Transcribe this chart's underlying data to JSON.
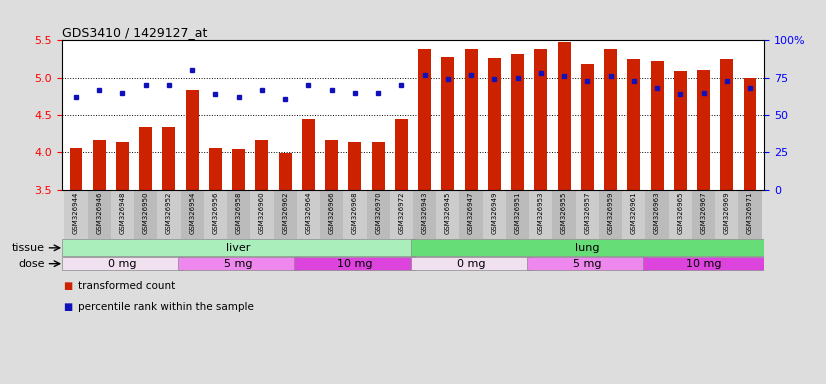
{
  "title": "GDS3410 / 1429127_at",
  "samples": [
    "GSM326944",
    "GSM326946",
    "GSM326948",
    "GSM326950",
    "GSM326952",
    "GSM326954",
    "GSM326956",
    "GSM326958",
    "GSM326960",
    "GSM326962",
    "GSM326964",
    "GSM326966",
    "GSM326968",
    "GSM326970",
    "GSM326972",
    "GSM326943",
    "GSM326945",
    "GSM326947",
    "GSM326949",
    "GSM326951",
    "GSM326953",
    "GSM326955",
    "GSM326957",
    "GSM326959",
    "GSM326961",
    "GSM326963",
    "GSM326965",
    "GSM326967",
    "GSM326969",
    "GSM326971"
  ],
  "transformed_count": [
    4.06,
    4.17,
    4.14,
    4.34,
    4.34,
    4.84,
    4.06,
    4.05,
    4.16,
    3.99,
    4.45,
    4.17,
    4.14,
    4.14,
    4.45,
    5.38,
    5.28,
    5.38,
    5.27,
    5.32,
    5.38,
    5.48,
    5.18,
    5.38,
    5.25,
    5.22,
    5.09,
    5.1,
    5.25,
    5.0
  ],
  "percentile_rank": [
    62,
    67,
    65,
    70,
    70,
    80,
    64,
    62,
    67,
    61,
    70,
    67,
    65,
    65,
    70,
    77,
    74,
    77,
    74,
    75,
    78,
    76,
    73,
    76,
    73,
    68,
    64,
    65,
    73,
    68
  ],
  "ylim_left": [
    3.5,
    5.5
  ],
  "ylim_right": [
    0,
    100
  ],
  "yticks_left": [
    3.5,
    4.0,
    4.5,
    5.0,
    5.5
  ],
  "yticks_right": [
    0,
    25,
    50,
    75,
    100
  ],
  "bar_color": "#CC2200",
  "dot_color": "#1111BB",
  "tissue_groups": [
    {
      "label": "liver",
      "start": 0,
      "end": 15,
      "color": "#AAEEBB"
    },
    {
      "label": "lung",
      "start": 15,
      "end": 30,
      "color": "#66DD77"
    }
  ],
  "dose_groups": [
    {
      "label": "0 mg",
      "start": 0,
      "end": 5,
      "color": "#F0E0F0"
    },
    {
      "label": "5 mg",
      "start": 5,
      "end": 10,
      "color": "#EE88EE"
    },
    {
      "label": "10 mg",
      "start": 10,
      "end": 15,
      "color": "#DD44DD"
    },
    {
      "label": "0 mg",
      "start": 15,
      "end": 20,
      "color": "#F0E0F0"
    },
    {
      "label": "5 mg",
      "start": 20,
      "end": 25,
      "color": "#EE88EE"
    },
    {
      "label": "10 mg",
      "start": 25,
      "end": 30,
      "color": "#DD44DD"
    }
  ],
  "legend_items": [
    {
      "label": "transformed count",
      "color": "#CC2200"
    },
    {
      "label": "percentile rank within the sample",
      "color": "#1111BB"
    }
  ],
  "bg_color": "#DDDDDD",
  "plot_bg": "#FFFFFF",
  "xlabel_bg_odd": "#CCCCCC",
  "xlabel_bg_even": "#BBBBBB"
}
